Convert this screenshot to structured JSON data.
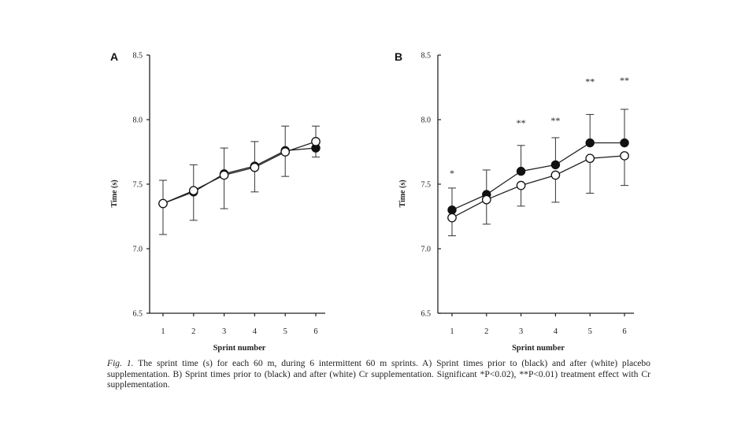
{
  "chart_data": [
    {
      "type": "line",
      "panel": "A",
      "title": "",
      "xlabel": "Sprint number",
      "ylabel": "Time (s)",
      "ylim": [
        6.5,
        8.5
      ],
      "y_ticks": [
        "6.5",
        "7.0",
        "7.5",
        "8.0",
        "8.5"
      ],
      "categories": [
        "1",
        "2",
        "3",
        "4",
        "5",
        "6"
      ],
      "series": [
        {
          "name": "prior (black)",
          "marker": "filled",
          "values": [
            7.35,
            7.44,
            7.58,
            7.64,
            7.76,
            7.78
          ],
          "error": [
            0.18,
            0.21,
            0.2,
            0.19,
            0.19,
            0.17
          ]
        },
        {
          "name": "after (white)",
          "marker": "open",
          "values": [
            7.35,
            7.45,
            7.57,
            7.63,
            7.75,
            7.83
          ],
          "error": [
            0.24,
            0.23,
            0.26,
            0.19,
            0.19,
            0.12
          ]
        }
      ],
      "annotations": []
    },
    {
      "type": "line",
      "panel": "B",
      "title": "",
      "xlabel": "Sprint number",
      "ylabel": "Time (s)",
      "ylim": [
        6.5,
        8.5
      ],
      "y_ticks": [
        "6.5",
        "7.0",
        "7.5",
        "8.0",
        "8.5"
      ],
      "categories": [
        "1",
        "2",
        "3",
        "4",
        "5",
        "6"
      ],
      "series": [
        {
          "name": "prior (black)",
          "marker": "filled",
          "values": [
            7.3,
            7.42,
            7.6,
            7.65,
            7.82,
            7.82
          ],
          "error": [
            0.17,
            0.19,
            0.2,
            0.21,
            0.22,
            0.26
          ]
        },
        {
          "name": "after (white)",
          "marker": "open",
          "values": [
            7.24,
            7.38,
            7.49,
            7.57,
            7.7,
            7.72
          ],
          "error": [
            0.14,
            0.19,
            0.16,
            0.21,
            0.27,
            0.23
          ]
        }
      ],
      "annotations": [
        {
          "category": "1",
          "label": "*",
          "value": 7.56
        },
        {
          "category": "3",
          "label": "**",
          "value": 7.95
        },
        {
          "category": "4",
          "label": "**",
          "value": 7.97
        },
        {
          "category": "5",
          "label": "**",
          "value": 8.27
        },
        {
          "category": "6",
          "label": "**",
          "value": 8.28
        }
      ]
    }
  ],
  "caption": {
    "label": "Fig. 1.",
    "line1": "The sprint time (s) for each 60 m, during 6 intermittent 60 m sprints. A) Sprint times prior to (black) and after (white)",
    "line2": "placebo supplementation. B) Sprint times prior to (black) and after (white) Cr supplementation. Significant *P<0.02), **P<0.01)",
    "line3": "treatment effect with Cr supplementation."
  }
}
